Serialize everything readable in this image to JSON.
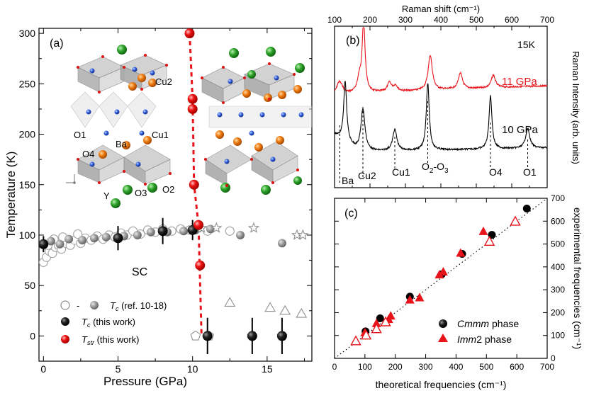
{
  "colors": {
    "red": "#e8141b",
    "black": "#000000",
    "gray": "#8c8c8c",
    "lightgray": "#b0b0b0"
  },
  "chart_data": [
    {
      "id": "a",
      "type": "scatter",
      "panel_label": "(a)",
      "xlabel": "Pressure (GPa)",
      "ylabel": "Temperature (K)",
      "xlim": [
        -0.3,
        18
      ],
      "ylim": [
        -25,
        305
      ],
      "xticks": [
        0,
        5,
        10,
        15
      ],
      "yticks": [
        0,
        50,
        100,
        150,
        200,
        250,
        300
      ],
      "region_label": "SC",
      "atom_labels": [
        "Cu2",
        "O1",
        "Cu1",
        "Ba",
        "O4",
        "Y",
        "O3",
        "O2"
      ],
      "series": [
        {
          "name": "Tc (ref. 10-18) open",
          "marker": "open",
          "points": [
            [
              0,
              73
            ],
            [
              0.2,
              78
            ],
            [
              0.4,
              84
            ],
            [
              0.6,
              82
            ],
            [
              0.8,
              88
            ],
            [
              1,
              90
            ],
            [
              1.2,
              86
            ],
            [
              1.5,
              92
            ],
            [
              1.8,
              90
            ],
            [
              2.1,
              95
            ],
            [
              2.5,
              92
            ],
            [
              2.8,
              97
            ],
            [
              3.2,
              95
            ],
            [
              3.6,
              99
            ],
            [
              4,
              96
            ],
            [
              4.4,
              100
            ],
            [
              4.8,
              98
            ],
            [
              5.2,
              102
            ],
            [
              5.6,
              100
            ],
            [
              6,
              104
            ],
            [
              6.5,
              101
            ],
            [
              7,
              105
            ],
            [
              7.5,
              103
            ],
            [
              8,
              106
            ],
            [
              8.6,
              104
            ],
            [
              9.2,
              106
            ],
            [
              9.8,
              105
            ],
            [
              10.4,
              107
            ],
            [
              11,
              104
            ],
            [
              12.5,
              104
            ],
            [
              0.3,
              90
            ],
            [
              0.7,
              96
            ],
            [
              1.3,
              98
            ],
            [
              2.3,
              101
            ]
          ]
        },
        {
          "name": "Tc (ref. 10-18) filled",
          "marker": "grayfill",
          "points": [
            [
              0.5,
              94
            ],
            [
              1.1,
              91
            ],
            [
              1.7,
              96
            ],
            [
              2.6,
              95
            ],
            [
              3.4,
              97
            ],
            [
              4.2,
              98
            ],
            [
              5.4,
              99
            ],
            [
              6.3,
              100
            ],
            [
              7.2,
              103
            ],
            [
              8.3,
              103
            ],
            [
              9.4,
              104
            ],
            [
              10.2,
              105
            ],
            [
              11.2,
              106
            ],
            [
              13.2,
              100
            ],
            [
              16,
              92
            ]
          ]
        },
        {
          "name": "Tc (ref. 10-18) stars",
          "marker": "star",
          "points": [
            [
              14.1,
              107
            ],
            [
              17,
              100
            ],
            [
              17.4,
              100
            ],
            [
              10.6,
              107
            ],
            [
              11.6,
              107
            ]
          ]
        },
        {
          "name": "Tc (ref. 10-18) triangles",
          "marker": "triangle",
          "points": [
            [
              12.5,
              33
            ],
            [
              15.2,
              28
            ],
            [
              16.2,
              25
            ],
            [
              17.3,
              22
            ]
          ]
        },
        {
          "name": "Tc (ref. 10-18) pentagons",
          "marker": "pentagon",
          "points": [
            [
              10.2,
              0
            ],
            [
              11.1,
              0
            ],
            [
              16,
              0
            ]
          ]
        },
        {
          "name": "Tc (this work)",
          "marker": "black",
          "points": [
            [
              0,
              91,
              8
            ],
            [
              5,
              97,
              12
            ],
            [
              8,
              104,
              13
            ],
            [
              10,
              105,
              10
            ],
            [
              11,
              0,
              18
            ],
            [
              14,
              0,
              18
            ],
            [
              16,
              0,
              18
            ]
          ]
        },
        {
          "name": "Tstr (this work)",
          "marker": "red",
          "points": [
            [
              9.8,
              300
            ],
            [
              10,
              235
            ],
            [
              10,
              225
            ],
            [
              10.1,
              150
            ],
            [
              10.4,
              110
            ],
            [
              10.5,
              70
            ]
          ]
        }
      ],
      "tstr_line": [
        [
          9.8,
          300
        ],
        [
          10.0,
          235
        ],
        [
          10.1,
          150
        ],
        [
          10.4,
          110
        ],
        [
          10.6,
          0
        ]
      ],
      "legend": [
        {
          "sym_a": "○",
          "sep": "-",
          "label": "T",
          "sub": "c",
          "tail": " (ref. 10-18)"
        },
        {
          "label": "T",
          "sub": "c",
          "tail": " (this work)"
        },
        {
          "label": "T",
          "sub": "str",
          "tail": " (this work)"
        }
      ]
    },
    {
      "id": "b",
      "type": "line",
      "panel_label": "(b)",
      "xlabel": "Raman shift (cm⁻¹)",
      "ylabel": "Raman Intensity (arb. units)",
      "xlim": [
        100,
        700
      ],
      "xticks": [
        100,
        200,
        300,
        400,
        500,
        600,
        700
      ],
      "temperature": "15K",
      "series": [
        {
          "name": "11 GPa",
          "color": "#e8141b",
          "peaks": [
            [
              112,
              15
            ],
            [
              120,
              8
            ],
            [
              170,
              20
            ],
            [
              182,
              110
            ],
            [
              255,
              14
            ],
            [
              272,
              9
            ],
            [
              370,
              55
            ],
            [
              455,
              25
            ],
            [
              548,
              20
            ]
          ]
        },
        {
          "name": "10 GPa",
          "color": "#000000",
          "peaks": [
            [
              130,
              85
            ],
            [
              180,
              60
            ],
            [
              270,
              30
            ],
            [
              363,
              95
            ],
            [
              540,
              75
            ],
            [
              645,
              28
            ]
          ]
        }
      ],
      "mode_labels": [
        {
          "label": "Ba",
          "x": 115
        },
        {
          "label": "Cu2",
          "x": 180
        },
        {
          "label": "Cu1",
          "x": 270
        },
        {
          "label": "O2-O3",
          "main": "O",
          "sub1": "2",
          "mid": "-O",
          "sub2": "3",
          "x": 363
        },
        {
          "label": "O4",
          "x": 540
        },
        {
          "label": "O1",
          "x": 645
        }
      ]
    },
    {
      "id": "c",
      "type": "scatter",
      "panel_label": "(c)",
      "xlabel": "theoretical frequencies (cm⁻¹)",
      "ylabel": "experimental frequencies (cm⁻¹)",
      "xlim": [
        0,
        700
      ],
      "ylim": [
        0,
        700
      ],
      "xticks": [
        0,
        100,
        200,
        300,
        400,
        500,
        600,
        700
      ],
      "yticks": [
        0,
        100,
        200,
        300,
        400,
        500,
        600,
        700
      ],
      "series": [
        {
          "name": "Cmmm phase",
          "marker": "black-circle",
          "points": [
            [
              102,
              118
            ],
            [
              150,
              175
            ],
            [
              248,
              270
            ],
            [
              353,
              368
            ],
            [
              420,
              457
            ],
            [
              518,
              540
            ],
            [
              633,
              655
            ]
          ]
        },
        {
          "name": "Imm2 phase",
          "marker": "red-triangle-filled",
          "points": [
            [
              100,
              112
            ],
            [
              138,
              152
            ],
            [
              178,
              170
            ],
            [
              185,
              185
            ],
            [
              248,
              255
            ],
            [
              280,
              265
            ],
            [
              345,
              365
            ],
            [
              358,
              378
            ],
            [
              415,
              460
            ],
            [
              490,
              555
            ]
          ]
        },
        {
          "name": "Imm2 phase open",
          "marker": "red-triangle-open",
          "points": [
            [
              70,
              75
            ],
            [
              104,
              100
            ],
            [
              138,
              128
            ],
            [
              168,
              158
            ],
            [
              510,
              510
            ],
            [
              595,
              598
            ]
          ]
        }
      ],
      "legend": [
        {
          "label": "Cmmm",
          "tail": " phase"
        },
        {
          "label": "Imm",
          "tail": "2 phase"
        }
      ]
    }
  ]
}
